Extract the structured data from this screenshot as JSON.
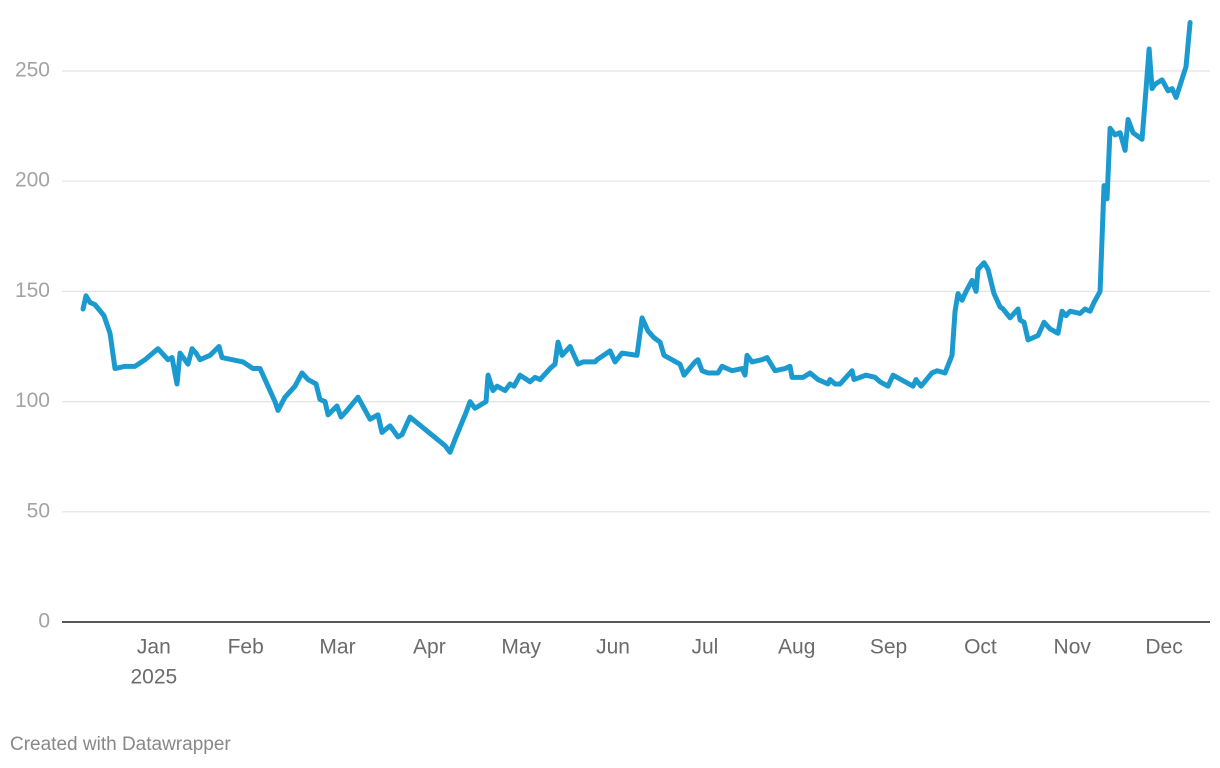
{
  "chart_data": {
    "type": "line",
    "x": [
      0.229,
      0.261,
      0.305,
      0.359,
      0.457,
      0.523,
      0.577,
      0.686,
      0.795,
      0.904,
      1.045,
      1.154,
      1.198,
      1.252,
      1.285,
      1.372,
      1.416,
      1.459,
      1.503,
      1.612,
      1.71,
      1.742,
      1.971,
      2.08,
      2.156,
      2.243,
      2.319,
      2.352,
      2.428,
      2.537,
      2.613,
      2.679,
      2.766,
      2.809,
      2.864,
      2.897,
      2.994,
      3.038,
      3.103,
      3.223,
      3.354,
      3.441,
      3.484,
      3.572,
      3.659,
      3.702,
      3.789,
      4.171,
      4.225,
      4.29,
      4.399,
      4.443,
      4.497,
      4.617,
      4.639,
      4.693,
      4.737,
      4.824,
      4.878,
      4.922,
      4.987,
      5.096,
      5.151,
      5.205,
      5.314,
      5.368,
      5.401,
      5.445,
      5.532,
      5.619,
      5.673,
      5.804,
      5.826,
      5.967,
      6.022,
      6.098,
      6.261,
      6.316,
      6.381,
      6.446,
      6.512,
      6.555,
      6.729,
      6.773,
      6.893,
      6.925,
      6.969,
      7.034,
      7.143,
      7.187,
      7.296,
      7.405,
      7.437,
      7.459,
      7.513,
      7.622,
      7.677,
      7.764,
      7.873,
      7.927,
      7.949,
      8.069,
      8.145,
      8.232,
      8.341,
      8.363,
      8.417,
      8.472,
      8.602,
      8.624,
      8.689,
      8.755,
      8.853,
      8.907,
      8.994,
      9.049,
      9.267,
      9.299,
      9.354,
      9.473,
      9.528,
      9.615,
      9.691,
      9.724,
      9.756,
      9.8,
      9.844,
      9.909,
      9.953,
      9.974,
      10.04,
      10.083,
      10.148,
      10.214,
      10.247,
      10.323,
      10.41,
      10.432,
      10.475,
      10.519,
      10.628,
      10.693,
      10.758,
      10.845,
      10.889,
      10.933,
      10.976,
      11.085,
      11.139,
      11.194,
      11.237,
      11.303,
      11.346,
      11.379,
      11.412,
      11.466,
      11.521,
      11.575,
      11.608,
      11.662,
      11.76,
      11.804,
      11.837,
      11.869,
      11.902,
      11.978,
      12.043,
      12.087,
      12.131,
      12.239,
      12.283
    ],
    "values": [
      142,
      148,
      145,
      144,
      139,
      131,
      115,
      116,
      116,
      119,
      124,
      119,
      120,
      108,
      122,
      117,
      124,
      122,
      119,
      121,
      125,
      120,
      118,
      115,
      115,
      107,
      100,
      96,
      102,
      107,
      113,
      110,
      108,
      101,
      100,
      94,
      98,
      93,
      96,
      102,
      92,
      94,
      86,
      89,
      84,
      85,
      93,
      80,
      77,
      84,
      95,
      100,
      97,
      100,
      112,
      105,
      107,
      105,
      108,
      107,
      112,
      109,
      111,
      110,
      115,
      117,
      127,
      121,
      125,
      117,
      118,
      118,
      119,
      123,
      118,
      122,
      121,
      138,
      132,
      129,
      127,
      121,
      117,
      112,
      118,
      119,
      114,
      113,
      113,
      116,
      114,
      115,
      112,
      121,
      118,
      119,
      120,
      114,
      115,
      116,
      111,
      111,
      113,
      110,
      108,
      110,
      108,
      108,
      114,
      110,
      111,
      112,
      111,
      109,
      107,
      112,
      107,
      110,
      107,
      113,
      114,
      113,
      121,
      141,
      149,
      146,
      150,
      155,
      150,
      160,
      163,
      160,
      149,
      143,
      142,
      138,
      142,
      137,
      136,
      128,
      130,
      136,
      133,
      131,
      141,
      139,
      141,
      140,
      142,
      141,
      145,
      150,
      198,
      192,
      224,
      221,
      222,
      214,
      228,
      222,
      219,
      242,
      260,
      242,
      244,
      246,
      241,
      242,
      238,
      252,
      272
    ],
    "color": "#1b9ad0",
    "xlim": [
      0,
      12.5
    ],
    "xticks": [
      {
        "value": 1,
        "label": "Jan"
      },
      {
        "value": 2,
        "label": "Feb"
      },
      {
        "value": 3,
        "label": "Mar"
      },
      {
        "value": 4,
        "label": "Apr"
      },
      {
        "value": 5,
        "label": "May"
      },
      {
        "value": 6,
        "label": "Jun"
      },
      {
        "value": 7,
        "label": "Jul"
      },
      {
        "value": 8,
        "label": "Aug"
      },
      {
        "value": 9,
        "label": "Sep"
      },
      {
        "value": 10,
        "label": "Oct"
      },
      {
        "value": 11,
        "label": "Nov"
      },
      {
        "value": 12,
        "label": "Dec"
      }
    ],
    "x_tick_sublabel": "2025",
    "ylim": [
      0,
      275
    ],
    "yticks": [
      0,
      50,
      100,
      150,
      200,
      250
    ],
    "grid": true,
    "credit": "Created with Datawrapper"
  }
}
